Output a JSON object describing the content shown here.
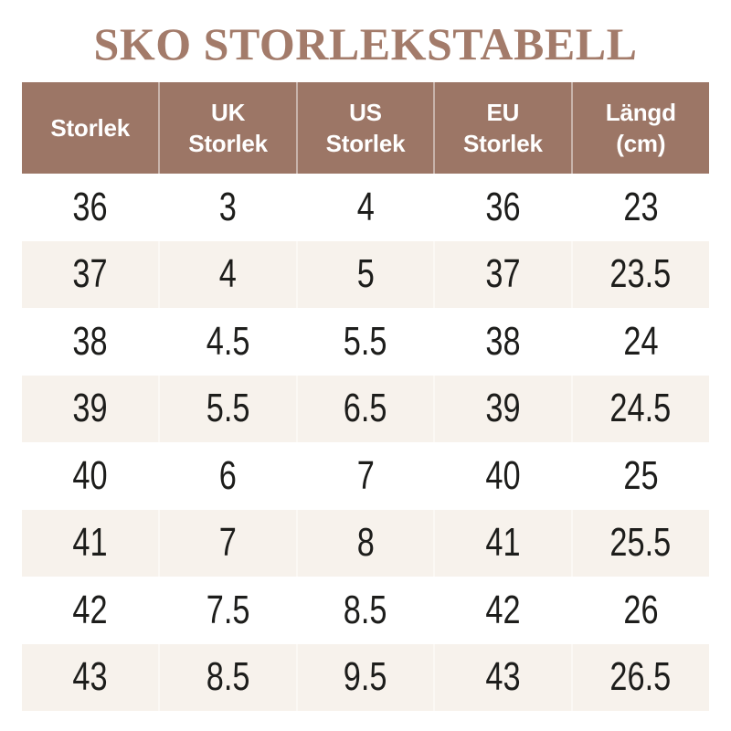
{
  "title": "SKO STORLEKSTABELL",
  "colors": {
    "title_text": "#a37b6a",
    "header_bg": "#9c7666",
    "header_text": "#ffffff",
    "row_bg": "#ffffff",
    "row_alt_bg": "#f7f2ec",
    "cell_text": "#1d1d1b",
    "cell_divider": "rgba(255,255,255,0.45)"
  },
  "table": {
    "header_display": [
      "Storlek",
      "UK\nStorlek",
      "US\nStorlek",
      "EU\nStorlek",
      "Längd\n(cm)"
    ]
  },
  "chart_data": {
    "type": "table",
    "title": "SKO STORLEKSTABELL",
    "columns": [
      "Storlek",
      "UK Storlek",
      "US Storlek",
      "EU Storlek",
      "Längd (cm)"
    ],
    "rows": [
      [
        36,
        3,
        4,
        36,
        23
      ],
      [
        37,
        4,
        5,
        37,
        23.5
      ],
      [
        38,
        4.5,
        5.5,
        38,
        24
      ],
      [
        39,
        5.5,
        6.5,
        39,
        24.5
      ],
      [
        40,
        6,
        7,
        40,
        25
      ],
      [
        41,
        7,
        8,
        41,
        25.5
      ],
      [
        42,
        7.5,
        8.5,
        42,
        26
      ],
      [
        43,
        8.5,
        9.5,
        43,
        26.5
      ]
    ]
  }
}
